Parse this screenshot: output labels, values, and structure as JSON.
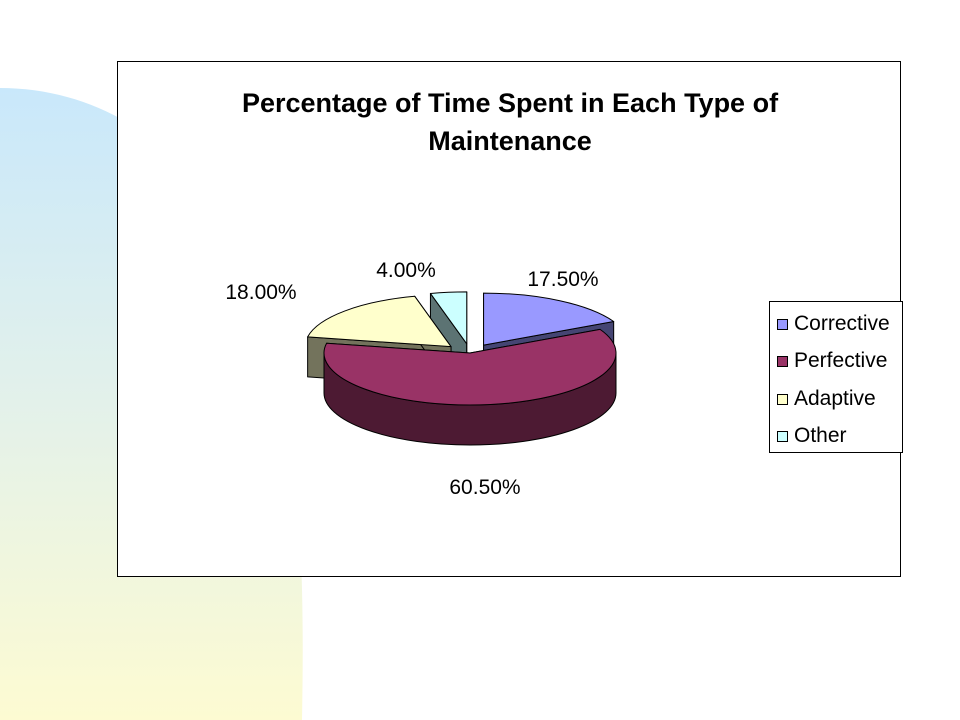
{
  "chart_data": {
    "type": "pie",
    "style": "3d-exploded",
    "title_lines": [
      "Percentage of Time Spent in Each Type of",
      "Maintenance"
    ],
    "categories": [
      "Corrective",
      "Perfective",
      "Adaptive",
      "Other"
    ],
    "values": [
      17.5,
      60.5,
      18.0,
      4.0
    ],
    "data_labels": [
      "17.50%",
      "60.50%",
      "18.00%",
      "4.00%"
    ],
    "colors": [
      "#9999ff",
      "#993366",
      "#ffffcc",
      "#ccffff"
    ],
    "legend_position": "right"
  }
}
